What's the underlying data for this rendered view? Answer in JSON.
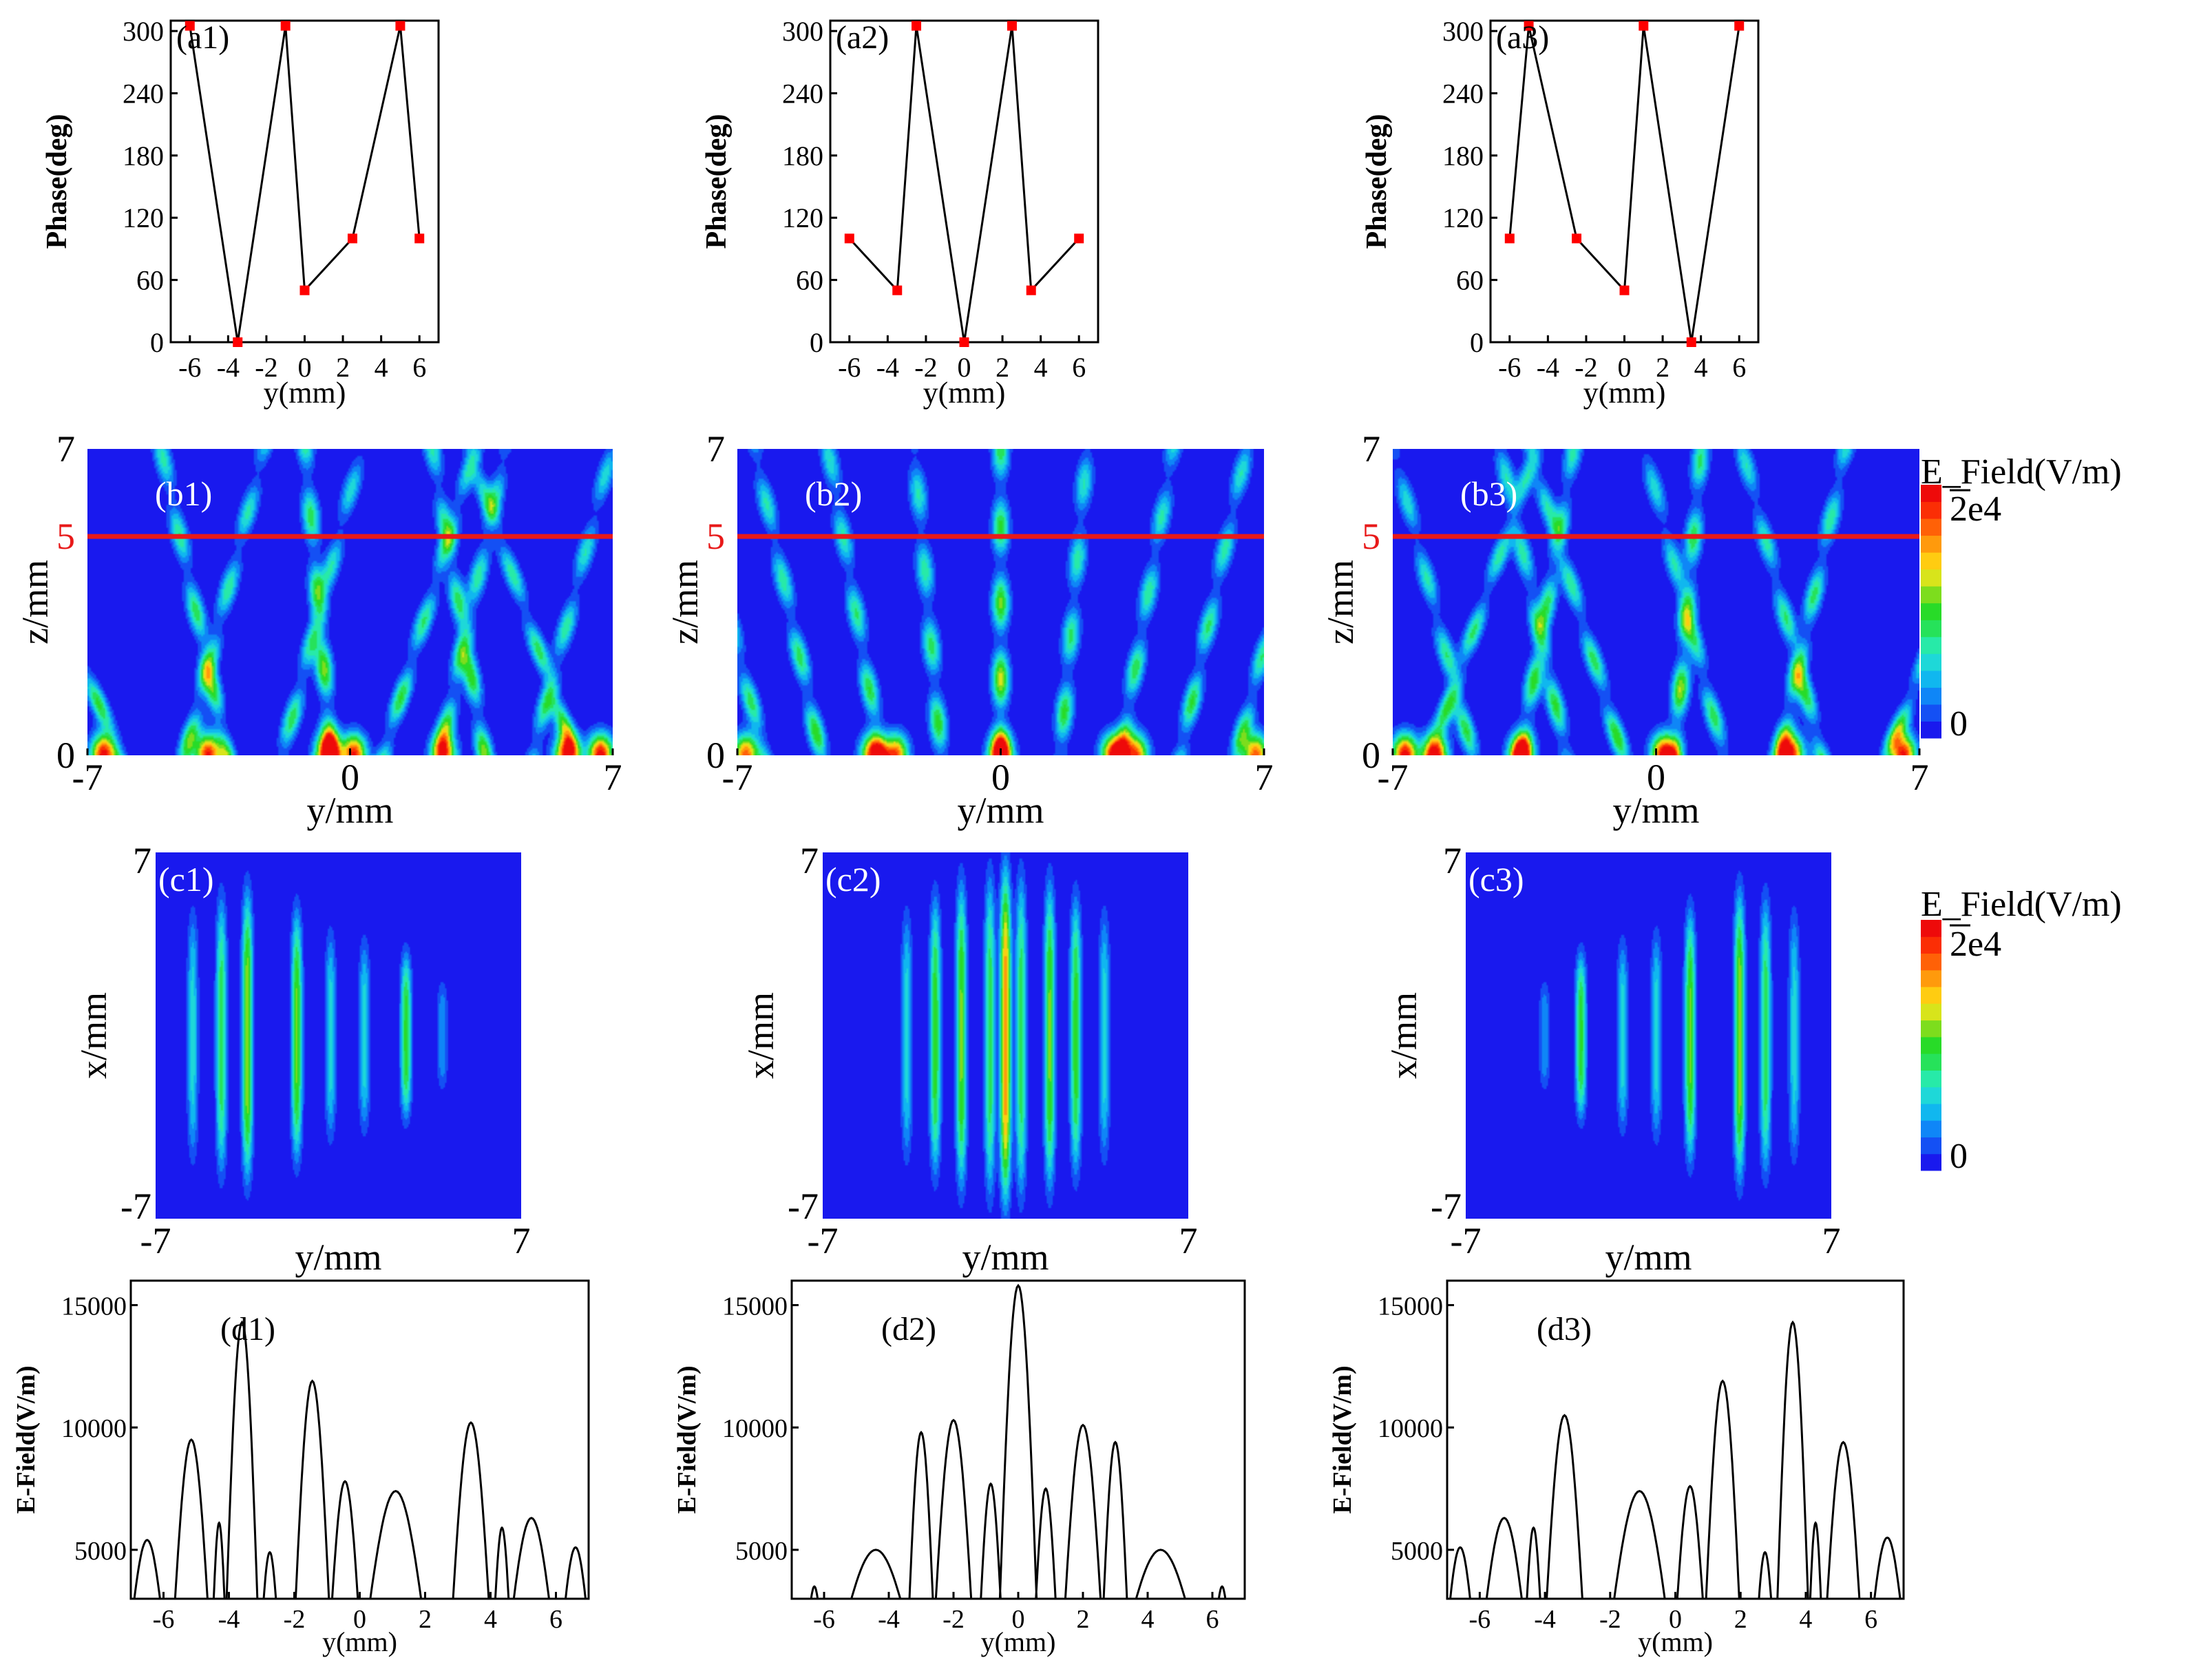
{
  "colors": {
    "line": "#000000",
    "marker": "#ff0000",
    "cut_line": "#e81919",
    "cut_label": "#e81919",
    "panel_label_dark": "#000000",
    "panel_label_light": "#ffffff",
    "field_background": "#1a1aef"
  },
  "colorbar": {
    "title": "E_Field(V/m)",
    "max_label": "2e4",
    "min_label": "0",
    "colors": [
      "#1919ee",
      "#1450f4",
      "#0f86f7",
      "#10b7ef",
      "#1ed8d8",
      "#27eaa8",
      "#26e25a",
      "#28db28",
      "#7ddd1d",
      "#d8e41b",
      "#ffcc11",
      "#ff9a0c",
      "#ff6107",
      "#fb2e05",
      "#ee0a0a"
    ]
  },
  "chart_data": [
    {
      "type": "line",
      "id": "a1",
      "label": "(a1)",
      "xlabel": "y(mm)",
      "ylabel": "Phase(deg)",
      "xlim": [
        -7,
        7
      ],
      "ylim": [
        0,
        310
      ],
      "xticks": [
        -6,
        -4,
        -2,
        0,
        2,
        4,
        6
      ],
      "yticks": [
        0,
        60,
        120,
        180,
        240,
        300
      ],
      "markers": true,
      "x": [
        -6,
        -3.5,
        -1,
        0,
        2.5,
        5,
        6
      ],
      "y": [
        305,
        0,
        305,
        50,
        100,
        305,
        100
      ]
    },
    {
      "type": "line",
      "id": "a2",
      "label": "(a2)",
      "xlabel": "y(mm)",
      "ylabel": "Phase(deg)",
      "xlim": [
        -7,
        7
      ],
      "ylim": [
        0,
        310
      ],
      "xticks": [
        -6,
        -4,
        -2,
        0,
        2,
        4,
        6
      ],
      "yticks": [
        0,
        60,
        120,
        180,
        240,
        300
      ],
      "markers": true,
      "x": [
        -6,
        -3.5,
        -2.5,
        0,
        2.5,
        3.5,
        6
      ],
      "y": [
        100,
        50,
        305,
        0,
        305,
        50,
        100
      ]
    },
    {
      "type": "line",
      "id": "a3",
      "label": "(a3)",
      "xlabel": "y(mm)",
      "ylabel": "Phase(deg)",
      "xlim": [
        -7,
        7
      ],
      "ylim": [
        0,
        310
      ],
      "xticks": [
        -6,
        -4,
        -2,
        0,
        2,
        4,
        6
      ],
      "yticks": [
        0,
        60,
        120,
        180,
        240,
        300
      ],
      "markers": true,
      "x": [
        -6,
        -5,
        -2.5,
        0,
        1,
        3.5,
        6
      ],
      "y": [
        100,
        305,
        100,
        50,
        305,
        0,
        305
      ]
    },
    {
      "type": "heatmap",
      "id": "b1",
      "label": "(b1)",
      "xlabel": "y/mm",
      "ylabel": "z/mm",
      "xlim": [
        -7,
        7
      ],
      "ylim": [
        0,
        7
      ],
      "xticks": [
        -7,
        0,
        7
      ],
      "yticks": [
        0,
        7
      ],
      "cut_line_z": 5,
      "cut_label": "5",
      "base_peaks": [
        {
          "y": -6.6,
          "a": 0.98
        },
        {
          "y": -3.8,
          "a": 0.95
        },
        {
          "y": -0.6,
          "a": 1.0
        },
        {
          "y": 0.1,
          "a": 0.95
        },
        {
          "y": 2.5,
          "a": 0.85
        },
        {
          "y": 5.8,
          "a": 1.0
        },
        {
          "y": 6.7,
          "a": 1.0
        }
      ],
      "beams": [
        {
          "y": -6.2,
          "s": -0.45,
          "a": 0.55
        },
        {
          "y": -4.4,
          "s": 0.3,
          "a": 0.55
        },
        {
          "y": -3.3,
          "s": -0.25,
          "a": 0.6
        },
        {
          "y": -1.8,
          "s": 0.3,
          "a": 0.5
        },
        {
          "y": -0.5,
          "s": -0.1,
          "a": 0.7
        },
        {
          "y": 0.9,
          "s": 0.35,
          "a": 0.55
        },
        {
          "y": 2.4,
          "s": 0.25,
          "a": 0.55
        },
        {
          "y": 3.6,
          "s": -0.2,
          "a": 0.6
        },
        {
          "y": 4.9,
          "s": 0.3,
          "a": 0.5
        },
        {
          "y": 6.0,
          "s": -0.4,
          "a": 0.55
        }
      ]
    },
    {
      "type": "heatmap",
      "id": "b2",
      "label": "(b2)",
      "xlabel": "y/mm",
      "ylabel": "z/mm",
      "xlim": [
        -7,
        7
      ],
      "ylim": [
        0,
        7
      ],
      "xticks": [
        -7,
        0,
        7
      ],
      "yticks": [
        0,
        7
      ],
      "cut_line_z": 5,
      "cut_label": "5",
      "base_peaks": [
        {
          "y": -6.8,
          "a": 0.85
        },
        {
          "y": -3.4,
          "a": 0.9
        },
        {
          "y": -2.8,
          "a": 0.85
        },
        {
          "y": 0.0,
          "a": 0.85
        },
        {
          "y": 3.0,
          "a": 0.9
        },
        {
          "y": 3.6,
          "a": 0.85
        },
        {
          "y": 6.8,
          "a": 0.85
        }
      ],
      "beams": [
        {
          "y": -6.3,
          "s": -0.3,
          "a": 0.5
        },
        {
          "y": -4.8,
          "s": -0.25,
          "a": 0.55
        },
        {
          "y": -3.2,
          "s": -0.2,
          "a": 0.55
        },
        {
          "y": -1.6,
          "s": -0.1,
          "a": 0.55
        },
        {
          "y": 0.0,
          "s": 0.0,
          "a": 0.75
        },
        {
          "y": 1.6,
          "s": 0.1,
          "a": 0.55
        },
        {
          "y": 3.2,
          "s": 0.2,
          "a": 0.55
        },
        {
          "y": 4.8,
          "s": 0.25,
          "a": 0.55
        },
        {
          "y": 6.3,
          "s": 0.3,
          "a": 0.5
        }
      ]
    },
    {
      "type": "heatmap",
      "id": "b3",
      "label": "(b3)",
      "xlabel": "y/mm",
      "ylabel": "z/mm",
      "xlim": [
        -7,
        7
      ],
      "ylim": [
        0,
        7
      ],
      "xticks": [
        -7,
        0,
        7
      ],
      "yticks": [
        0,
        7
      ],
      "cut_line_z": 5,
      "cut_label": "5",
      "base_peaks": [
        {
          "y": -6.7,
          "a": 1.0
        },
        {
          "y": -5.9,
          "a": 1.0
        },
        {
          "y": -3.6,
          "a": 0.95
        },
        {
          "y": 0.2,
          "a": 1.0
        },
        {
          "y": 3.6,
          "a": 0.95
        },
        {
          "y": 6.6,
          "a": 0.95
        }
      ],
      "beams": [
        {
          "y": -6.0,
          "s": 0.4,
          "a": 0.55
        },
        {
          "y": -4.9,
          "s": -0.3,
          "a": 0.5
        },
        {
          "y": -3.6,
          "s": 0.2,
          "a": 0.6
        },
        {
          "y": -2.4,
          "s": -0.25,
          "a": 0.55
        },
        {
          "y": -0.9,
          "s": -0.35,
          "a": 0.55
        },
        {
          "y": 0.5,
          "s": 0.1,
          "a": 0.7
        },
        {
          "y": 1.8,
          "s": -0.3,
          "a": 0.5
        },
        {
          "y": 3.3,
          "s": 0.25,
          "a": 0.6
        },
        {
          "y": 4.4,
          "s": -0.3,
          "a": 0.55
        },
        {
          "y": 6.2,
          "s": 0.45,
          "a": 0.55
        }
      ]
    },
    {
      "type": "heatmap",
      "id": "c1",
      "label": "(c1)",
      "xlabel": "y/mm",
      "ylabel": "x/mm",
      "xlim": [
        -7,
        7
      ],
      "ylim": [
        -7,
        7
      ],
      "xticks": [
        -7,
        7
      ],
      "yticks": [
        -7,
        7
      ],
      "fringes": [
        {
          "y": -5.6,
          "a": 0.3,
          "h": 4.5
        },
        {
          "y": -4.5,
          "a": 0.45,
          "h": 5.0
        },
        {
          "y": -3.5,
          "a": 0.6,
          "h": 5.2
        },
        {
          "y": -1.6,
          "a": 0.55,
          "h": 4.5
        },
        {
          "y": -0.3,
          "a": 0.3,
          "h": 3.8
        },
        {
          "y": 1.0,
          "a": 0.3,
          "h": 3.5
        },
        {
          "y": 2.6,
          "a": 0.5,
          "h": 3.0
        },
        {
          "y": 4.0,
          "a": 0.2,
          "h": 2.0
        }
      ]
    },
    {
      "type": "heatmap",
      "id": "c2",
      "label": "(c2)",
      "xlabel": "y/mm",
      "ylabel": "x/mm",
      "xlim": [
        -7,
        7
      ],
      "ylim": [
        -7,
        7
      ],
      "xticks": [
        -7,
        7
      ],
      "yticks": [
        -7,
        7
      ],
      "fringes": [
        {
          "y": -3.8,
          "a": 0.3,
          "h": 4.5
        },
        {
          "y": -2.7,
          "a": 0.5,
          "h": 5.0
        },
        {
          "y": -1.7,
          "a": 0.55,
          "h": 5.5
        },
        {
          "y": -0.6,
          "a": 0.45,
          "h": 5.8
        },
        {
          "y": 0.0,
          "a": 0.8,
          "h": 6.0
        },
        {
          "y": 0.6,
          "a": 0.45,
          "h": 5.8
        },
        {
          "y": 1.7,
          "a": 0.55,
          "h": 5.5
        },
        {
          "y": 2.7,
          "a": 0.5,
          "h": 5.0
        },
        {
          "y": 3.8,
          "a": 0.3,
          "h": 4.5
        }
      ]
    },
    {
      "type": "heatmap",
      "id": "c3",
      "label": "(c3)",
      "xlabel": "y/mm",
      "ylabel": "x/mm",
      "xlim": [
        -7,
        7
      ],
      "ylim": [
        -7,
        7
      ],
      "xticks": [
        -7,
        7
      ],
      "yticks": [
        -7,
        7
      ],
      "fringes": [
        {
          "y": -4.0,
          "a": 0.2,
          "h": 2.0
        },
        {
          "y": -2.6,
          "a": 0.5,
          "h": 3.0
        },
        {
          "y": -1.0,
          "a": 0.3,
          "h": 3.5
        },
        {
          "y": 0.3,
          "a": 0.3,
          "h": 3.8
        },
        {
          "y": 1.6,
          "a": 0.55,
          "h": 4.5
        },
        {
          "y": 3.5,
          "a": 0.6,
          "h": 5.2
        },
        {
          "y": 4.5,
          "a": 0.45,
          "h": 5.0
        },
        {
          "y": 5.6,
          "a": 0.3,
          "h": 4.5
        }
      ]
    },
    {
      "type": "line",
      "id": "d1",
      "label": "(d1)",
      "xlabel": "y(mm)",
      "ylabel": "E-Field(V/m)",
      "xlim": [
        -7,
        7
      ],
      "ylim": [
        3000,
        16000
      ],
      "xticks": [
        -6,
        -4,
        -2,
        0,
        2,
        4,
        6
      ],
      "yticks": [
        5000,
        10000,
        15000
      ],
      "lobes": [
        {
          "x0": -7.0,
          "x1": -6.0,
          "peak": 5400
        },
        {
          "x0": -5.7,
          "x1": -4.6,
          "peak": 9500
        },
        {
          "x0": -4.5,
          "x1": -4.1,
          "peak": 6100
        },
        {
          "x0": -4.1,
          "x1": -3.1,
          "peak": 14300
        },
        {
          "x0": -3.0,
          "x1": -2.5,
          "peak": 4900
        },
        {
          "x0": -2.0,
          "x1": -0.9,
          "peak": 11900
        },
        {
          "x0": -0.9,
          "x1": 0.0,
          "peak": 7800
        },
        {
          "x0": 0.2,
          "x1": 2.0,
          "peak": 7400
        },
        {
          "x0": 2.8,
          "x1": 4.0,
          "peak": 10200
        },
        {
          "x0": 4.1,
          "x1": 4.6,
          "peak": 5900
        },
        {
          "x0": 4.6,
          "x1": 5.9,
          "peak": 6300
        },
        {
          "x0": 6.2,
          "x1": 7.0,
          "peak": 5100
        }
      ]
    },
    {
      "type": "line",
      "id": "d2",
      "label": "(d2)",
      "xlabel": "y(mm)",
      "ylabel": "E-Field(V/m)",
      "xlim": [
        -7,
        7
      ],
      "ylim": [
        3000,
        16000
      ],
      "xticks": [
        -6,
        -4,
        -2,
        0,
        2,
        4,
        6
      ],
      "yticks": [
        5000,
        10000,
        15000
      ],
      "lobes": [
        {
          "x0": -6.5,
          "x1": -6.1,
          "peak": 3500
        },
        {
          "x0": -5.4,
          "x1": -3.4,
          "peak": 5000
        },
        {
          "x0": -3.4,
          "x1": -2.6,
          "peak": 9800
        },
        {
          "x0": -2.6,
          "x1": -1.4,
          "peak": 10300
        },
        {
          "x0": -1.2,
          "x1": -0.5,
          "peak": 7700
        },
        {
          "x0": -0.6,
          "x1": 0.6,
          "peak": 15800
        },
        {
          "x0": 0.5,
          "x1": 1.2,
          "peak": 7500
        },
        {
          "x0": 1.4,
          "x1": 2.6,
          "peak": 10100
        },
        {
          "x0": 2.6,
          "x1": 3.4,
          "peak": 9400
        },
        {
          "x0": 3.4,
          "x1": 5.4,
          "peak": 5000
        },
        {
          "x0": 6.1,
          "x1": 6.5,
          "peak": 3500
        }
      ]
    },
    {
      "type": "line",
      "id": "d3",
      "label": "(d3)",
      "xlabel": "y(mm)",
      "ylabel": "E-Field(V/m)",
      "xlim": [
        -7,
        7
      ],
      "ylim": [
        3000,
        16000
      ],
      "xticks": [
        -6,
        -4,
        -2,
        0,
        2,
        4,
        6
      ],
      "yticks": [
        5000,
        10000,
        15000
      ],
      "lobes": [
        {
          "x0": -7.0,
          "x1": -6.2,
          "peak": 5100
        },
        {
          "x0": -5.9,
          "x1": -4.6,
          "peak": 6300
        },
        {
          "x0": -4.6,
          "x1": -4.1,
          "peak": 5900
        },
        {
          "x0": -4.0,
          "x1": -2.8,
          "peak": 10500
        },
        {
          "x0": -2.0,
          "x1": -0.2,
          "peak": 7400
        },
        {
          "x0": 0.0,
          "x1": 0.9,
          "peak": 7600
        },
        {
          "x0": 0.9,
          "x1": 2.0,
          "peak": 11900
        },
        {
          "x0": 2.5,
          "x1": 3.0,
          "peak": 4900
        },
        {
          "x0": 3.1,
          "x1": 4.1,
          "peak": 14300
        },
        {
          "x0": 4.1,
          "x1": 4.5,
          "peak": 6100
        },
        {
          "x0": 4.6,
          "x1": 5.7,
          "peak": 9400
        },
        {
          "x0": 6.0,
          "x1": 7.0,
          "peak": 5500
        }
      ]
    }
  ]
}
